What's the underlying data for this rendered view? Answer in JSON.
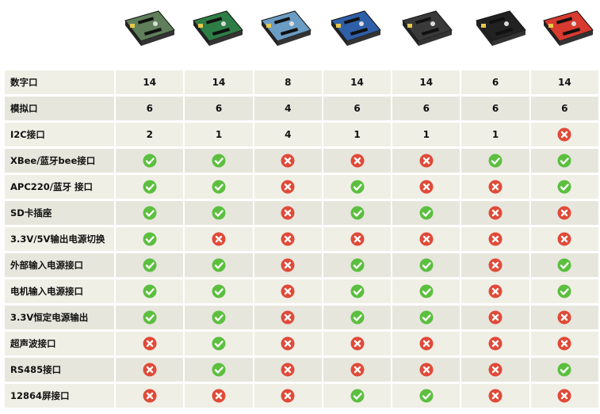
{
  "boards": [
    {
      "icon": "shield-board-1-image",
      "color": "#5f7f5a"
    },
    {
      "icon": "shield-board-2-image",
      "color": "#2f7d46"
    },
    {
      "icon": "shield-board-3-image",
      "color": "#6b9cc4"
    },
    {
      "icon": "shield-board-4-image",
      "color": "#2f5fa8"
    },
    {
      "icon": "shield-board-5-image",
      "color": "#3a3a3a"
    },
    {
      "icon": "shield-board-6-image",
      "color": "#222222"
    },
    {
      "icon": "shield-board-7-image",
      "color": "#d83a2f"
    }
  ],
  "rows": [
    {
      "label": "数字口",
      "cells": [
        "14",
        "14",
        "8",
        "14",
        "14",
        "6",
        "14"
      ]
    },
    {
      "label": "模拟口",
      "cells": [
        "6",
        "6",
        "4",
        "6",
        "6",
        "6",
        "6"
      ]
    },
    {
      "label": "I2C接口",
      "cells": [
        "2",
        "1",
        "4",
        "1",
        "1",
        "1",
        "no"
      ]
    },
    {
      "label": "XBee/蓝牙bee接口",
      "cells": [
        "yes",
        "yes",
        "no",
        "no",
        "no",
        "yes",
        "yes"
      ]
    },
    {
      "label": "APC220/蓝牙 接口",
      "cells": [
        "yes",
        "yes",
        "no",
        "yes",
        "no",
        "no",
        "yes"
      ]
    },
    {
      "label": "SD卡插座",
      "cells": [
        "yes",
        "yes",
        "no",
        "yes",
        "yes",
        "no",
        "no"
      ]
    },
    {
      "label": "3.3V/5V输出电源切换",
      "cells": [
        "yes",
        "no",
        "no",
        "no",
        "no",
        "no",
        "no"
      ]
    },
    {
      "label": "外部输入电源接口",
      "cells": [
        "yes",
        "yes",
        "no",
        "yes",
        "yes",
        "no",
        "yes"
      ]
    },
    {
      "label": "电机输入电源接口",
      "cells": [
        "yes",
        "yes",
        "no",
        "yes",
        "yes",
        "no",
        "yes"
      ]
    },
    {
      "label": "3.3V恒定电源输出",
      "cells": [
        "yes",
        "yes",
        "no",
        "yes",
        "yes",
        "no",
        "no"
      ]
    },
    {
      "label": "超声波接口",
      "cells": [
        "no",
        "yes",
        "no",
        "no",
        "no",
        "no",
        "no"
      ]
    },
    {
      "label": "RS485接口",
      "cells": [
        "no",
        "yes",
        "no",
        "no",
        "no",
        "no",
        "yes"
      ]
    },
    {
      "label": "12864屏接口",
      "cells": [
        "no",
        "no",
        "no",
        "yes",
        "yes",
        "no",
        "no"
      ]
    }
  ],
  "colors": {
    "yes": "#5cbf3f",
    "no": "#e04a38",
    "row_a": "#f0efe6",
    "row_b": "#e6e6dd"
  },
  "icons": {
    "yes": "check-circle-icon",
    "no": "cross-circle-icon"
  }
}
